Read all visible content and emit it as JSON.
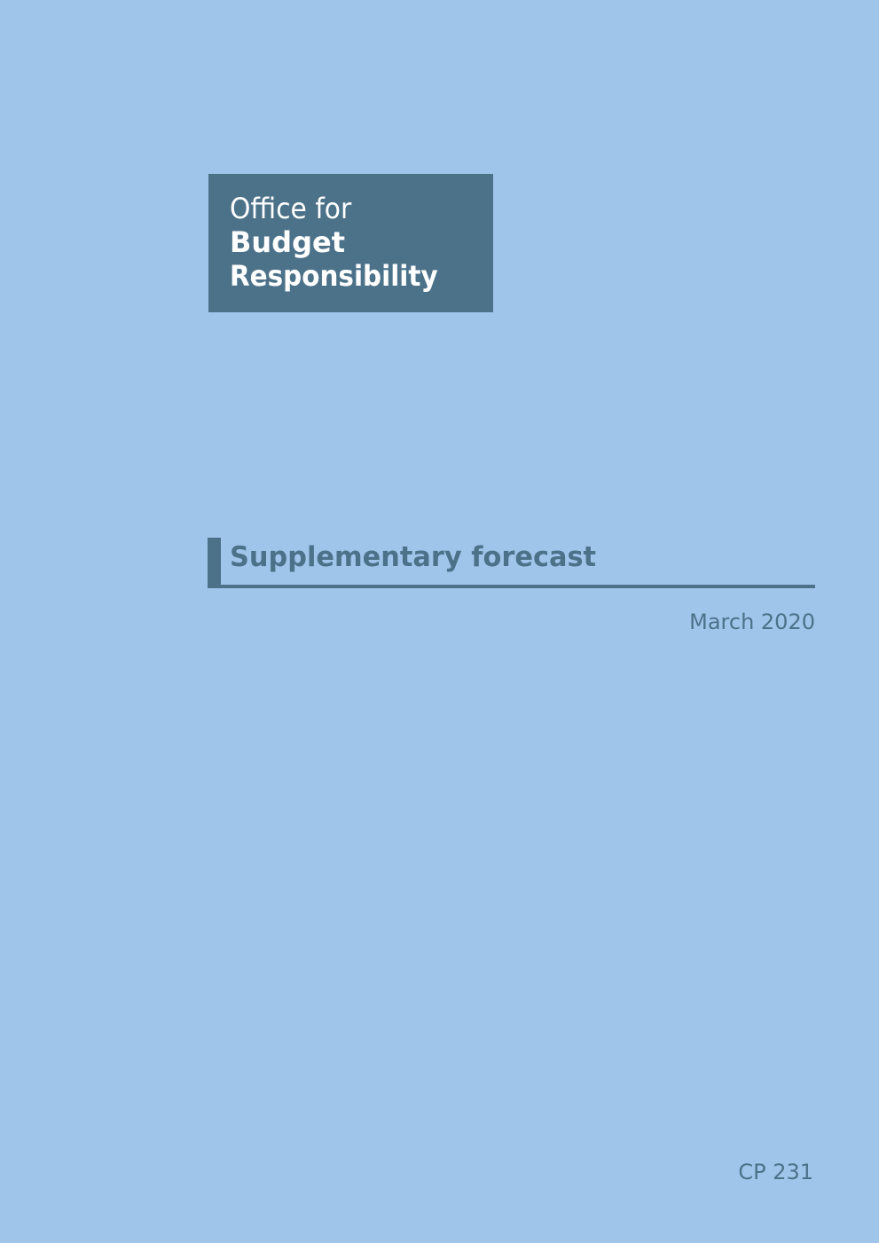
{
  "logo": {
    "line1": "Office for",
    "line2": "Budget",
    "line3": "Responsibility"
  },
  "document": {
    "title": "Supplementary forecast",
    "date": "March 2020",
    "reference": "CP 231"
  },
  "colors": {
    "background": "#a0c5eb",
    "brand": "#4c728a",
    "logo_text": "#ffffff"
  }
}
